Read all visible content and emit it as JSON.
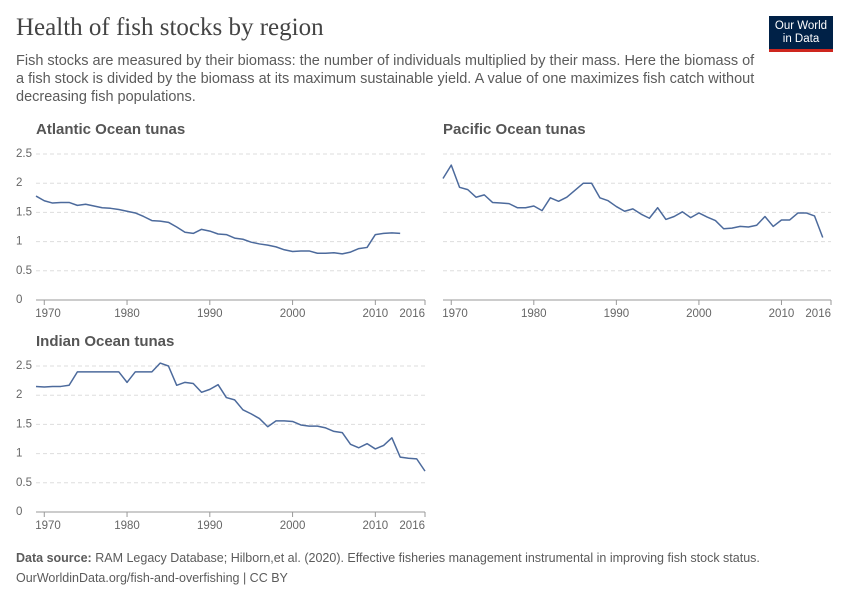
{
  "title": "Health of fish stocks by region",
  "subtitle": "Fish stocks are measured by their biomass: the number of individuals multiplied by their mass. Here the biomass of a fish stock is divided by the biomass at its maximum sustainable yield. A value of one maximizes fish catch without decreasing fish populations.",
  "logo": [
    "Our World",
    "in Data"
  ],
  "source_label": "Data source:",
  "source": "RAM Legacy Database; Hilborn,et al. (2020). Effective fisheries management instrumental in improving fish stock status.",
  "url": "OurWorldinData.org/fish-and-overfishing | CC BY",
  "chart_data": [
    {
      "type": "line",
      "title": "Atlantic Ocean tunas",
      "color": "#4c6a9c",
      "grid": true,
      "xlim": [
        1969,
        2016
      ],
      "xticks": [
        1970,
        1980,
        1990,
        2000,
        2010,
        2016
      ],
      "ylim": [
        0,
        2.5
      ],
      "yticks": [
        0,
        0.5,
        1,
        1.5,
        2,
        2.5
      ],
      "x": [
        1969,
        1970,
        1971,
        1972,
        1973,
        1974,
        1975,
        1976,
        1977,
        1978,
        1979,
        1980,
        1981,
        1982,
        1983,
        1984,
        1985,
        1986,
        1987,
        1988,
        1989,
        1990,
        1991,
        1992,
        1993,
        1994,
        1995,
        1996,
        1997,
        1998,
        1999,
        2000,
        2001,
        2002,
        2003,
        2004,
        2005,
        2006,
        2007,
        2008,
        2009,
        2010,
        2011,
        2012,
        2013
      ],
      "values": [
        1.78,
        1.7,
        1.66,
        1.67,
        1.67,
        1.62,
        1.64,
        1.61,
        1.58,
        1.57,
        1.55,
        1.52,
        1.49,
        1.43,
        1.36,
        1.35,
        1.33,
        1.25,
        1.16,
        1.14,
        1.21,
        1.18,
        1.13,
        1.12,
        1.06,
        1.04,
        0.99,
        0.96,
        0.94,
        0.91,
        0.86,
        0.83,
        0.84,
        0.84,
        0.8,
        0.8,
        0.81,
        0.79,
        0.82,
        0.88,
        0.9,
        1.12,
        1.14,
        1.15,
        1.14
      ]
    },
    {
      "type": "line",
      "title": "Pacific Ocean tunas",
      "color": "#4c6a9c",
      "grid": true,
      "xlim": [
        1969,
        2016
      ],
      "xticks": [
        1970,
        1980,
        1990,
        2000,
        2010,
        2016
      ],
      "ylim": [
        0,
        2.5
      ],
      "yticks": [
        0,
        0.5,
        1,
        1.5,
        2,
        2.5
      ],
      "x": [
        1969,
        1970,
        1971,
        1972,
        1973,
        1974,
        1975,
        1976,
        1977,
        1978,
        1979,
        1980,
        1981,
        1982,
        1983,
        1984,
        1985,
        1986,
        1987,
        1988,
        1989,
        1990,
        1991,
        1992,
        1993,
        1994,
        1995,
        1996,
        1997,
        1998,
        1999,
        2000,
        2001,
        2002,
        2003,
        2004,
        2005,
        2006,
        2007,
        2008,
        2009,
        2010,
        2011,
        2012,
        2013,
        2014,
        2015
      ],
      "values": [
        2.08,
        2.31,
        1.93,
        1.89,
        1.76,
        1.8,
        1.67,
        1.66,
        1.65,
        1.58,
        1.58,
        1.61,
        1.53,
        1.75,
        1.69,
        1.76,
        1.88,
        2.0,
        2.0,
        1.75,
        1.7,
        1.6,
        1.52,
        1.56,
        1.47,
        1.4,
        1.58,
        1.38,
        1.43,
        1.51,
        1.41,
        1.49,
        1.42,
        1.36,
        1.22,
        1.23,
        1.26,
        1.25,
        1.28,
        1.43,
        1.26,
        1.37,
        1.37,
        1.49,
        1.49,
        1.44,
        1.07
      ]
    },
    {
      "type": "line",
      "title": "Indian Ocean tunas",
      "color": "#4c6a9c",
      "grid": true,
      "xlim": [
        1969,
        2016
      ],
      "xticks": [
        1970,
        1980,
        1990,
        2000,
        2010,
        2016
      ],
      "ylim": [
        0,
        2.5
      ],
      "yticks": [
        0,
        0.5,
        1,
        1.5,
        2,
        2.5
      ],
      "x": [
        1969,
        1970,
        1971,
        1972,
        1973,
        1974,
        1975,
        1976,
        1977,
        1978,
        1979,
        1980,
        1981,
        1982,
        1983,
        1984,
        1985,
        1986,
        1987,
        1988,
        1989,
        1990,
        1991,
        1992,
        1993,
        1994,
        1995,
        1996,
        1997,
        1998,
        1999,
        2000,
        2001,
        2002,
        2003,
        2004,
        2005,
        2006,
        2007,
        2008,
        2009,
        2010,
        2011,
        2012,
        2013,
        2014,
        2015,
        2016
      ],
      "values": [
        2.15,
        2.14,
        2.15,
        2.15,
        2.17,
        2.4,
        2.4,
        2.4,
        2.4,
        2.4,
        2.4,
        2.22,
        2.4,
        2.4,
        2.4,
        2.55,
        2.5,
        2.17,
        2.22,
        2.2,
        2.05,
        2.1,
        2.18,
        1.96,
        1.92,
        1.75,
        1.68,
        1.6,
        1.46,
        1.56,
        1.56,
        1.55,
        1.49,
        1.47,
        1.47,
        1.44,
        1.38,
        1.36,
        1.16,
        1.1,
        1.17,
        1.08,
        1.14,
        1.27,
        0.94,
        0.92,
        0.91,
        0.7
      ]
    }
  ]
}
